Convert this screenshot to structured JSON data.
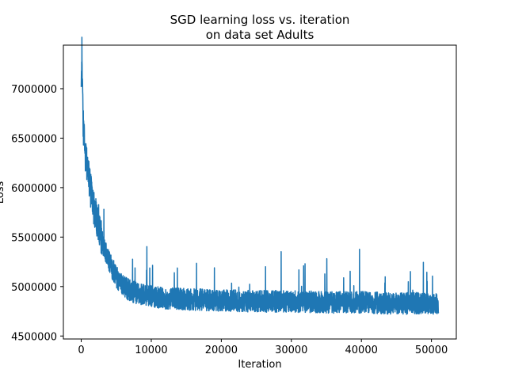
{
  "chart_data": {
    "type": "line",
    "title_line1": "SGD learning loss vs. iteration",
    "title_line2": "on data set Adults",
    "xlabel": "Iteration",
    "ylabel": "Loss",
    "xlim": [
      -2550,
      53550
    ],
    "ylim": [
      4470000,
      7440000
    ],
    "xticks": [
      0,
      10000,
      20000,
      30000,
      40000,
      50000
    ],
    "xtick_labels": [
      "0",
      "10000",
      "20000",
      "30000",
      "40000",
      "50000"
    ],
    "yticks": [
      4500000,
      5000000,
      5500000,
      6000000,
      6500000,
      7000000
    ],
    "ytick_labels": [
      "4500000",
      "5000000",
      "5500000",
      "6000000",
      "6500000",
      "7000000"
    ],
    "grid": false,
    "series": [
      {
        "color": "#1f77b4",
        "x": [
          0,
          100,
          300,
          600,
          1000,
          1500,
          2000,
          3000,
          4000,
          5000,
          6000,
          7000,
          8000,
          10000,
          12000,
          15000,
          20000,
          25000,
          30000,
          35000,
          40000,
          45000,
          50000,
          51000
        ],
        "y": [
          7000000,
          7320000,
          6600000,
          6300000,
          6150000,
          5900000,
          5750000,
          5450000,
          5250000,
          5100000,
          5000000,
          4960000,
          4930000,
          4900000,
          4880000,
          4870000,
          4860000,
          4850000,
          4850000,
          4840000,
          4840000,
          4830000,
          4830000,
          4830000
        ]
      }
    ]
  }
}
